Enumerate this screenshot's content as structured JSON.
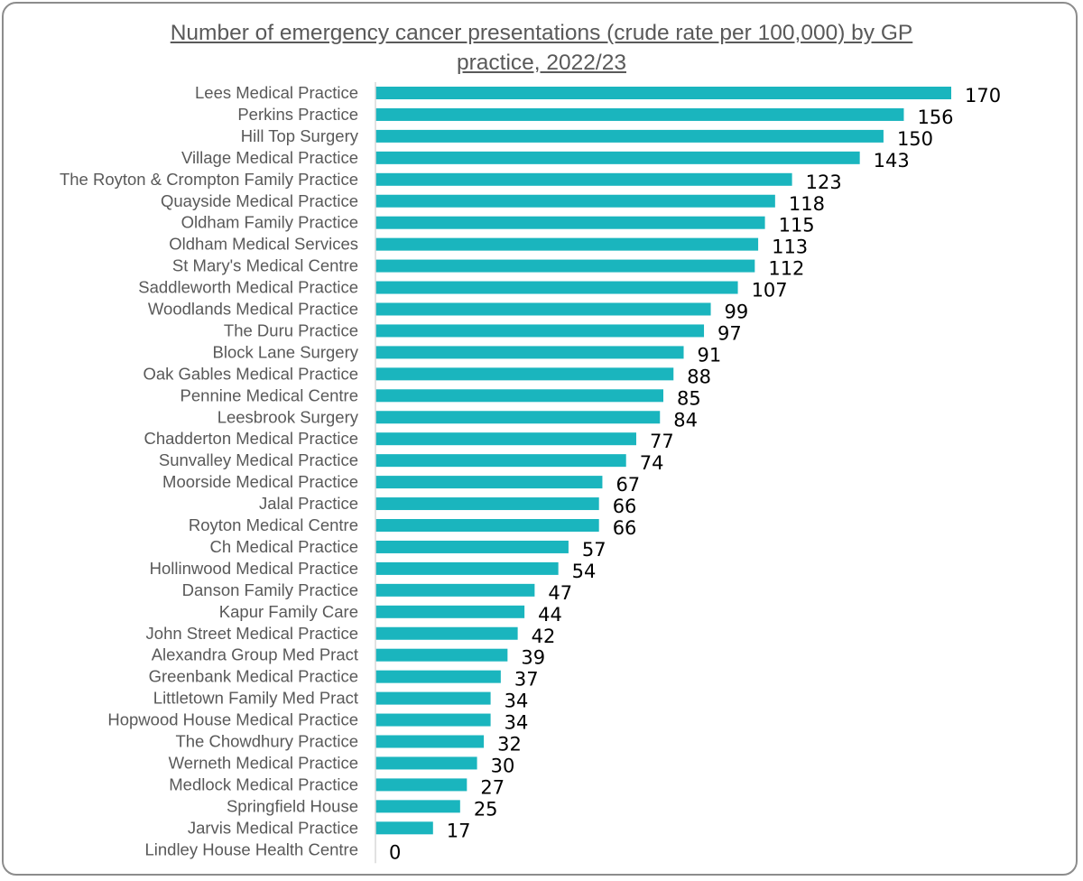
{
  "chart_data": {
    "type": "bar",
    "orientation": "horizontal",
    "title_lines": [
      "Number of emergency cancer presentations (crude rate per 100,000) by GP",
      "practice, 2022/23"
    ],
    "bar_color": "#1AB5BE",
    "axis_color": "#D9D9D9",
    "categories": [
      "Lees Medical Practice",
      "Perkins Practice",
      "Hill Top Surgery",
      "Village Medical Practice",
      "The Royton & Crompton Family Practice",
      "Quayside Medical Practice",
      "Oldham Family Practice",
      "Oldham Medical Services",
      "St Mary's Medical Centre",
      "Saddleworth Medical Practice",
      "Woodlands Medical Practice",
      "The Duru Practice",
      "Block Lane Surgery",
      "Oak Gables Medical Practice",
      "Pennine Medical Centre",
      "Leesbrook Surgery",
      "Chadderton Medical Practice",
      "Sunvalley Medical Practice",
      "Moorside Medical Practice",
      "Jalal Practice",
      "Royton Medical Centre",
      "Ch Medical Practice",
      "Hollinwood Medical Practice",
      "Danson Family Practice",
      "Kapur Family Care",
      "John Street Medical Practice",
      "Alexandra Group Med Pract",
      "Greenbank Medical Practice",
      "Littletown Family Med Pract",
      "Hopwood House Medical Practice",
      "The Chowdhury Practice",
      "Werneth Medical Practice",
      "Medlock Medical Practice",
      "Springfield House",
      "Jarvis Medical Practice",
      "Lindley House Health Centre"
    ],
    "values": [
      170,
      156,
      150,
      143,
      123,
      118,
      115,
      113,
      112,
      107,
      99,
      97,
      91,
      88,
      85,
      84,
      77,
      74,
      67,
      66,
      66,
      57,
      54,
      47,
      44,
      42,
      39,
      37,
      34,
      34,
      32,
      30,
      27,
      25,
      17,
      0
    ],
    "xlim": [
      0,
      170
    ],
    "grid": false,
    "legend": "none",
    "data_labels": true
  }
}
